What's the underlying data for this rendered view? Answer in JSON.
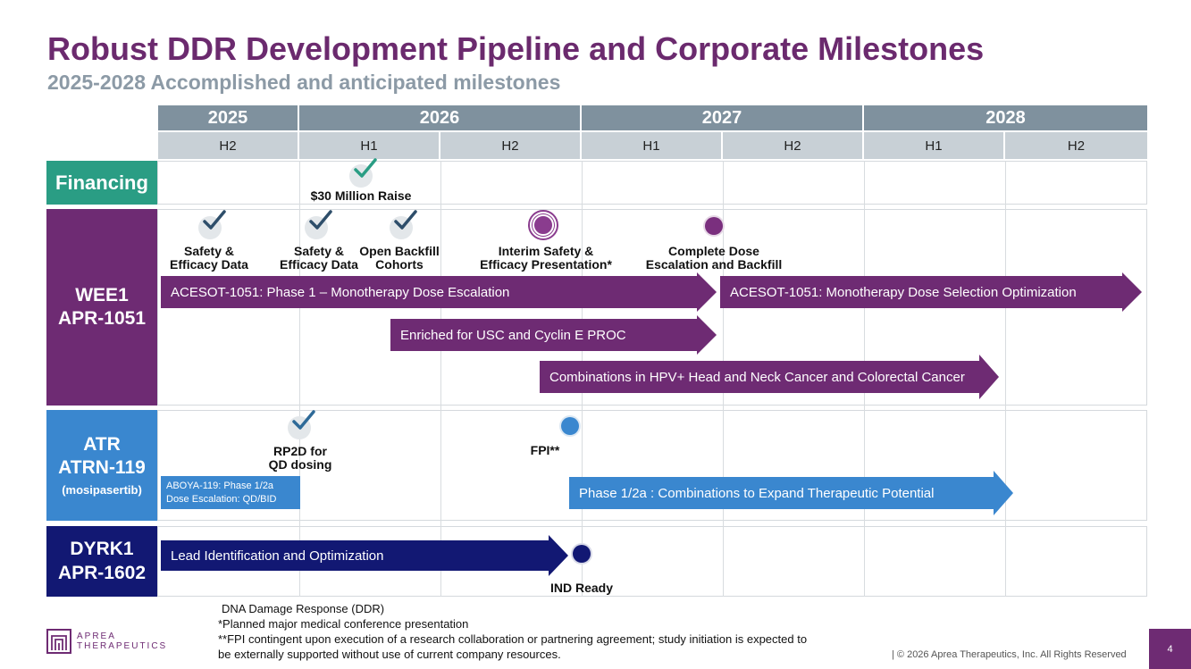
{
  "header": {
    "title": "Robust DDR Development Pipeline and Corporate Milestones",
    "subtitle": "2025-2028 Accomplished and anticipated milestones"
  },
  "timeline": {
    "years": [
      "2025",
      "2026",
      "2027",
      "2028"
    ],
    "halves": [
      "H2",
      "H1",
      "H2",
      "H1",
      "H2",
      "H1",
      "H2"
    ]
  },
  "rows": {
    "financing": {
      "label": "Financing",
      "milestones": [
        {
          "label": "$30 Million Raise",
          "status": "accomplished"
        }
      ]
    },
    "wee1": {
      "label_line1": "WEE1",
      "label_line2": "APR-1051",
      "milestones": [
        {
          "label_line1": "Safety &",
          "label_line2": "Efficacy Data",
          "status": "accomplished"
        },
        {
          "label_line1": "Safety &",
          "label_line2": "Efficacy Data",
          "status": "accomplished"
        },
        {
          "label_line1": "Open Backfill",
          "label_line2": "Cohorts",
          "status": "accomplished"
        },
        {
          "label_line1": "Interim Safety &",
          "label_line2": "Efficacy Presentation*",
          "status": "anticipated"
        },
        {
          "label_line1": "Complete Dose",
          "label_line2": "Escalation and Backfill",
          "status": "anticipated"
        }
      ],
      "bars": [
        "ACESOT-1051: Phase 1 – Monotherapy Dose Escalation",
        "ACESOT-1051: Monotherapy Dose Selection Optimization",
        "Enriched for USC and Cyclin E PROC",
        "Combinations in HPV+ Head and Neck Cancer and Colorectal Cancer"
      ]
    },
    "atr": {
      "label_line1": "ATR",
      "label_line2": "ATRN-119",
      "label_line3": "(mosipasertib)",
      "milestones": [
        {
          "label_line1": "RP2D for",
          "label_line2": "QD dosing",
          "status": "accomplished"
        },
        {
          "label": "FPI**",
          "status": "anticipated"
        }
      ],
      "bars": [
        {
          "line1": "ABOYA-119: Phase 1/2a",
          "line2": "Dose Escalation: QD/BID"
        },
        {
          "line1": "Phase 1/2a : Combinations to Expand Therapeutic Potential"
        }
      ]
    },
    "dyrk1": {
      "label_line1": "DYRK1",
      "label_line2": "APR-1602",
      "milestones": [
        {
          "label": "IND Ready",
          "status": "anticipated"
        }
      ],
      "bars": [
        "Lead Identification and Optimization"
      ]
    }
  },
  "footer": {
    "note1": "DNA Damage Response (DDR)",
    "note2": "*Planned major medical conference presentation",
    "note3": "**FPI contingent upon execution of a research collaboration or partnering agreement; study initiation is expected to",
    "note4": "be externally supported without use of current company resources.",
    "copyright": "| © 2026 Aprea Therapeutics, Inc. All Rights Reserved",
    "page_number": "4",
    "logo_line1": "APREA",
    "logo_line2": "THERAPEUTICS"
  },
  "colors": {
    "purple": "#6e2b73",
    "teal": "#2a9d84",
    "blue": "#3a87cf",
    "navy": "#121873",
    "header_gray": "#7f919e",
    "subheader_gray": "#c8d0d6"
  },
  "icons": {
    "accomplished": "check-icon",
    "anticipated": "dot-icon"
  }
}
